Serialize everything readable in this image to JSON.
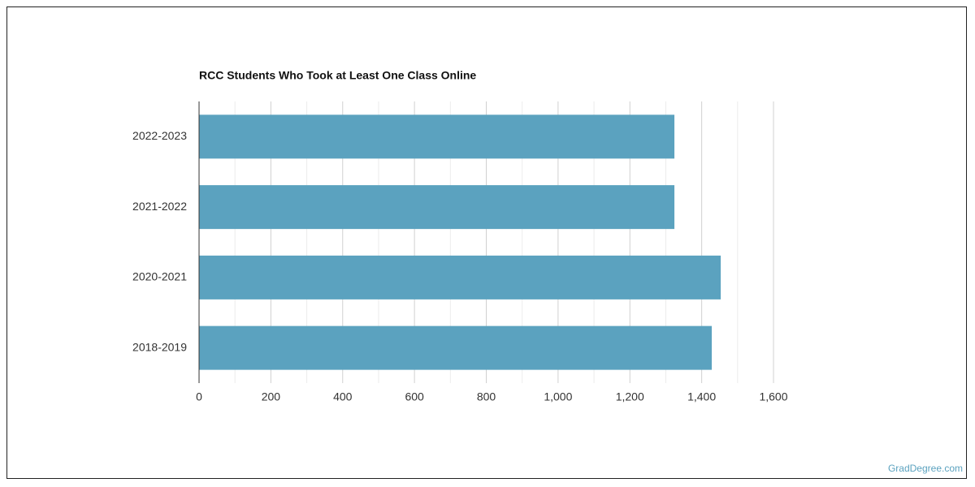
{
  "chart_data": {
    "type": "bar",
    "orientation": "horizontal",
    "title": "RCC Students Who Took at Least One Class Online",
    "categories": [
      "2022-2023",
      "2021-2022",
      "2020-2021",
      "2018-2019"
    ],
    "values": [
      1324,
      1324,
      1453,
      1428
    ],
    "color": "#5ba2bf",
    "xlim": [
      0,
      1600
    ],
    "xticks": [
      0,
      200,
      400,
      600,
      800,
      {
        "value": 1000,
        "label": "1,000"
      },
      {
        "value": 1200,
        "label": "1,200"
      },
      {
        "value": 1400,
        "label": "1,400"
      },
      {
        "value": 1600,
        "label": "1,600"
      }
    ],
    "xminor_ticks": [
      100,
      300,
      500,
      700,
      900,
      1100,
      1300,
      1500
    ],
    "grid": true,
    "source": "GradDegree.com"
  }
}
